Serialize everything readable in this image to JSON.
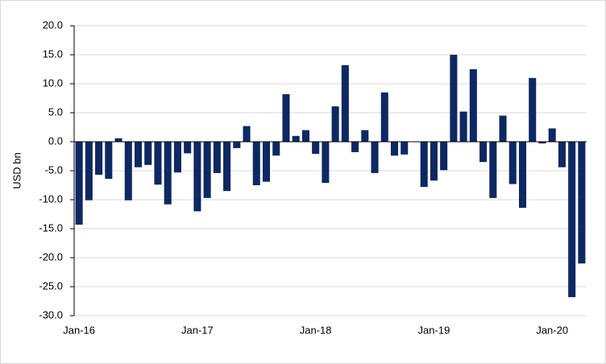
{
  "chart_data": {
    "type": "bar",
    "y_label": "USD bn",
    "categories": [
      "Jan-16",
      null,
      null,
      null,
      null,
      null,
      null,
      null,
      null,
      null,
      null,
      null,
      "Jan-17",
      null,
      null,
      null,
      null,
      null,
      null,
      null,
      null,
      null,
      null,
      null,
      "Jan-18",
      null,
      null,
      null,
      null,
      null,
      null,
      null,
      null,
      null,
      null,
      null,
      "Jan-19",
      null,
      null,
      null,
      null,
      null,
      null,
      null,
      null,
      null,
      null,
      null,
      "Jan-20",
      null,
      null,
      null
    ],
    "values": [
      -14.3,
      -10.1,
      -5.7,
      -6.4,
      0.6,
      -10.1,
      -4.4,
      -4.0,
      -7.4,
      -10.8,
      -5.3,
      -2.0,
      -12.0,
      -9.7,
      -5.4,
      -8.5,
      -1.1,
      2.7,
      -7.5,
      -6.9,
      -2.4,
      8.2,
      1.0,
      2.0,
      -2.1,
      -7.1,
      6.1,
      13.2,
      -1.8,
      2.0,
      -5.4,
      8.5,
      -2.4,
      -2.2,
      0.0,
      -7.8,
      -6.7,
      -4.9,
      15.0,
      5.2,
      12.5,
      -3.5,
      -9.7,
      4.5,
      -7.3,
      -11.4,
      11.0,
      -0.3,
      2.3,
      -4.4,
      -26.8,
      -21.0
    ],
    "color": "#0e2862",
    "ylim": [
      -30,
      20
    ],
    "yticks": [
      {
        "value": -30,
        "label": "-30.0"
      },
      {
        "value": -25,
        "label": "-25.0"
      },
      {
        "value": -20,
        "label": "-20.0"
      },
      {
        "value": -15,
        "label": "-15.0"
      },
      {
        "value": -10,
        "label": "-10.0"
      },
      {
        "value": -5,
        "label": "-5.0"
      },
      {
        "value": 0,
        "label": "0.0"
      },
      {
        "value": 5,
        "label": "5.0"
      },
      {
        "value": 10,
        "label": "10.0"
      },
      {
        "value": 15,
        "label": "15.0"
      },
      {
        "value": 20,
        "label": "20.0"
      }
    ],
    "grid": true
  }
}
